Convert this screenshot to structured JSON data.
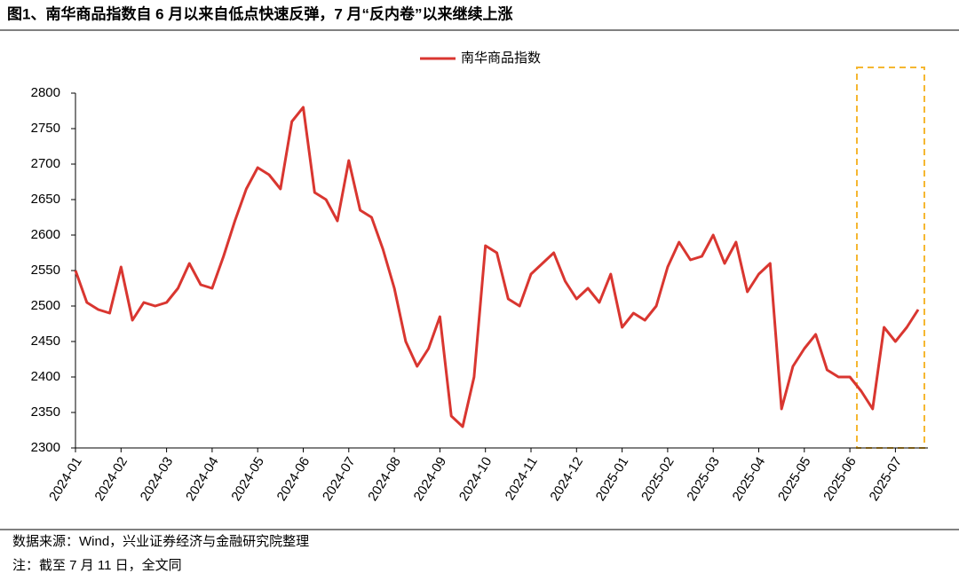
{
  "chart_data": {
    "type": "line",
    "title": "图1、南华商品指数自 6 月以来自低点快速反弹，7 月“反内卷”以来继续上涨",
    "source": "数据来源：Wind，兴业证券经济与金融研究院整理",
    "note": "注：截至 7 月 11 日，全文同",
    "categories": [
      "2024-01",
      null,
      null,
      null,
      "2024-02",
      null,
      null,
      null,
      "2024-03",
      null,
      null,
      null,
      "2024-04",
      null,
      null,
      null,
      "2024-05",
      null,
      null,
      null,
      "2024-06",
      null,
      null,
      null,
      "2024-07",
      null,
      null,
      null,
      "2024-08",
      null,
      null,
      null,
      "2024-09",
      null,
      null,
      null,
      "2024-10",
      null,
      null,
      null,
      "2024-11",
      null,
      null,
      null,
      "2024-12",
      null,
      null,
      null,
      "2025-01",
      null,
      null,
      null,
      "2025-02",
      null,
      null,
      null,
      "2025-03",
      null,
      null,
      null,
      "2025-04",
      null,
      null,
      null,
      "2025-05",
      null,
      null,
      null,
      "2025-06",
      null,
      null,
      null,
      "2025-07",
      null,
      null
    ],
    "series": [
      {
        "name": "南华商品指数",
        "color": "#d93630",
        "values": [
          2550,
          2505,
          2495,
          2490,
          2555,
          2480,
          2505,
          2500,
          2505,
          2525,
          2560,
          2530,
          2525,
          2570,
          2620,
          2665,
          2695,
          2685,
          2665,
          2760,
          2780,
          2660,
          2650,
          2620,
          2705,
          2635,
          2625,
          2580,
          2525,
          2450,
          2415,
          2440,
          2485,
          2345,
          2330,
          2400,
          2585,
          2575,
          2510,
          2500,
          2545,
          2560,
          2575,
          2535,
          2510,
          2525,
          2505,
          2545,
          2470,
          2490,
          2480,
          2500,
          2555,
          2590,
          2565,
          2570,
          2600,
          2560,
          2590,
          2520,
          2545,
          2560,
          2355,
          2415,
          2440,
          2460,
          2410,
          2400,
          2400,
          2380,
          2355,
          2470,
          2450,
          2470,
          2495
        ]
      }
    ],
    "ylim": [
      2300,
      2800
    ],
    "yticks": [
      2300,
      2350,
      2400,
      2450,
      2500,
      2550,
      2600,
      2650,
      2700,
      2750,
      2800
    ],
    "legend": "top",
    "grid": false
  }
}
